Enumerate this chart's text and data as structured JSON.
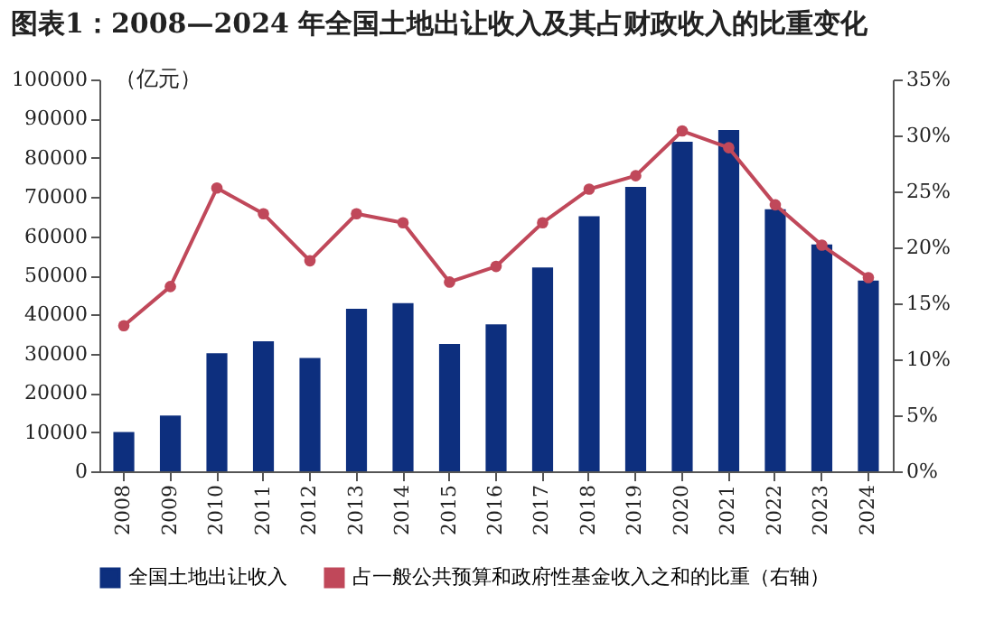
{
  "chart_data": {
    "type": "bar",
    "title": "图表1：2008—2024 年全国土地出让收入及其占财政收入的比重变化",
    "ylabel": "（亿元）",
    "categories": [
      "2008",
      "2009",
      "2010",
      "2011",
      "2012",
      "2013",
      "2014",
      "2015",
      "2016",
      "2017",
      "2018",
      "2019",
      "2020",
      "2021",
      "2022",
      "2023",
      "2024"
    ],
    "series": [
      {
        "name": "全国土地出让收入",
        "color": "#0d2f7e",
        "values": [
          10000,
          14200,
          30100,
          33200,
          28900,
          41500,
          42900,
          32500,
          37500,
          52000,
          65100,
          72600,
          84100,
          87100,
          66900,
          57900,
          48700
        ]
      },
      {
        "name": "占一般公共预算和政府性基金收入之和的比重（右轴）",
        "type": "line",
        "axis": "y2",
        "color": "#c0485a",
        "values": [
          13,
          16.5,
          25.3,
          23,
          18.8,
          23,
          22.2,
          16.9,
          18.3,
          22.2,
          25.2,
          26.4,
          30.4,
          28.9,
          23.8,
          20.2,
          17.3
        ]
      }
    ],
    "ylim": [
      0,
      100000
    ],
    "yticks": [
      0,
      10000,
      20000,
      30000,
      40000,
      50000,
      60000,
      70000,
      80000,
      90000,
      100000
    ],
    "y2lim": [
      0,
      35
    ],
    "y2ticks": [
      {
        "value": 0,
        "label": "0%"
      },
      {
        "value": 5,
        "label": "5%"
      },
      {
        "value": 10,
        "label": "10%"
      },
      {
        "value": 15,
        "label": "15%"
      },
      {
        "value": 20,
        "label": "20%"
      },
      {
        "value": 25,
        "label": "25%"
      },
      {
        "value": 30,
        "label": "30%"
      },
      {
        "value": 35,
        "label": "35%"
      }
    ],
    "marker": "circle",
    "legend": "bottom",
    "grid": false
  }
}
